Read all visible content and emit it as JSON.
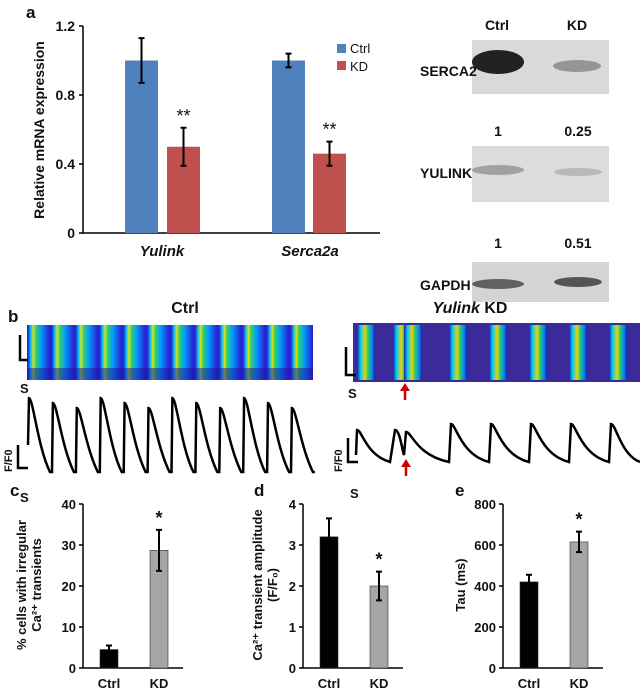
{
  "panel_labels": {
    "a": "a",
    "b": "b",
    "c": "c",
    "d": "d",
    "e": "e"
  },
  "chart_data": [
    {
      "id": "a",
      "type": "bar",
      "ylabel": "Relative mRNA expression",
      "categories": [
        "Yulink",
        "Serca2a"
      ],
      "ylim": [
        0,
        1.2
      ],
      "yticks": [
        "0",
        "0.4",
        "0.8",
        "1.2"
      ],
      "series": [
        {
          "name": "Ctrl",
          "color": "#4f81bd",
          "values": [
            1.0,
            1.0
          ],
          "errors": [
            0.13,
            0.04
          ]
        },
        {
          "name": "KD",
          "color": "#c0504d",
          "values": [
            0.5,
            0.46
          ],
          "errors": [
            0.11,
            0.07
          ]
        }
      ],
      "annotations": [
        "**",
        "**"
      ],
      "legend": "top-right"
    },
    {
      "id": "c",
      "type": "bar",
      "ylabel_line1": "% cells with irregular",
      "ylabel_line2": "Ca²⁺ transients",
      "categories": [
        "Ctrl",
        "KD"
      ],
      "colors": [
        "#000000",
        "#a6a6a6"
      ],
      "values": [
        4.5,
        28.7
      ],
      "errors": [
        1.0,
        5.0
      ],
      "ylim": [
        0,
        40
      ],
      "yticks": [
        "0",
        "10",
        "20",
        "30",
        "40"
      ],
      "annotations": [
        "",
        "*"
      ]
    },
    {
      "id": "d",
      "type": "bar",
      "ylabel_line1": "Ca²⁺ transient amplitude",
      "ylabel_line2": "(F/F₀)",
      "categories": [
        "Ctrl",
        "KD"
      ],
      "colors": [
        "#000000",
        "#a6a6a6"
      ],
      "values": [
        3.2,
        2.0
      ],
      "errors": [
        0.45,
        0.35
      ],
      "ylim": [
        0,
        4
      ],
      "yticks": [
        "0",
        "1",
        "2",
        "3",
        "4"
      ],
      "annotations": [
        "",
        "*"
      ]
    },
    {
      "id": "e",
      "type": "bar",
      "ylabel_line1": "Tau (ms)",
      "categories": [
        "Ctrl",
        "KD"
      ],
      "colors": [
        "#000000",
        "#a6a6a6"
      ],
      "values": [
        420,
        615
      ],
      "errors": [
        35,
        50
      ],
      "ylim": [
        0,
        800
      ],
      "yticks": [
        "0",
        "200",
        "400",
        "600",
        "800"
      ],
      "annotations": [
        "",
        "*"
      ]
    }
  ],
  "western_blot": {
    "columns": [
      "Ctrl",
      "KD"
    ],
    "rows": [
      {
        "label": "SERCA2",
        "quant": [
          "1",
          "0.25"
        ]
      },
      {
        "label": "YULINK",
        "quant": [
          "1",
          "0.51"
        ]
      },
      {
        "label": "GAPDH",
        "quant": []
      }
    ]
  },
  "panel_b": {
    "ctrl_title": "Ctrl",
    "kd_title_italic": "Yulink",
    "kd_title_rest": " KD",
    "scale_s": "S",
    "scale_f": "F/F0",
    "arrow_color": "#d00000"
  }
}
